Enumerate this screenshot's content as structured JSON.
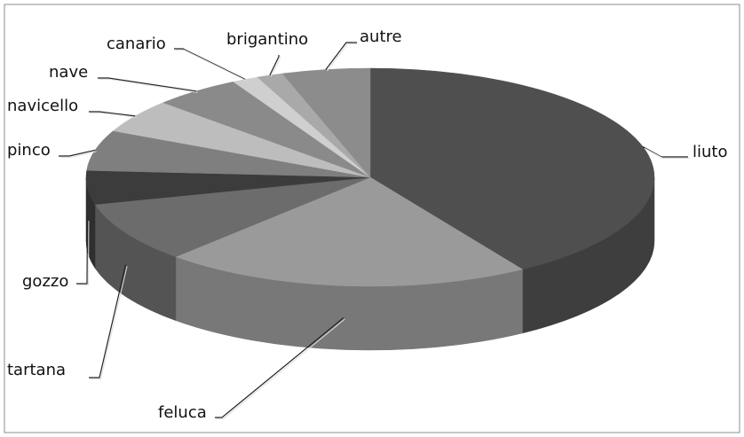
{
  "chart_data": {
    "type": "pie",
    "categories": [
      "liuto",
      "feluca",
      "tartana",
      "gozzo",
      "pinco",
      "navicello",
      "nave",
      "canario",
      "brigantino",
      "autre"
    ],
    "values": [
      41,
      21,
      9,
      5,
      6,
      5,
      5,
      1.5,
      1.5,
      5
    ],
    "colors": [
      "#4f4f4f",
      "#9a9a9a",
      "#6c6c6c",
      "#3c3c3c",
      "#7f7f7f",
      "#bdbdbd",
      "#8a8a8a",
      "#cfcfcf",
      "#a9a9a9",
      "#8c8c8c"
    ],
    "three_d": true
  }
}
